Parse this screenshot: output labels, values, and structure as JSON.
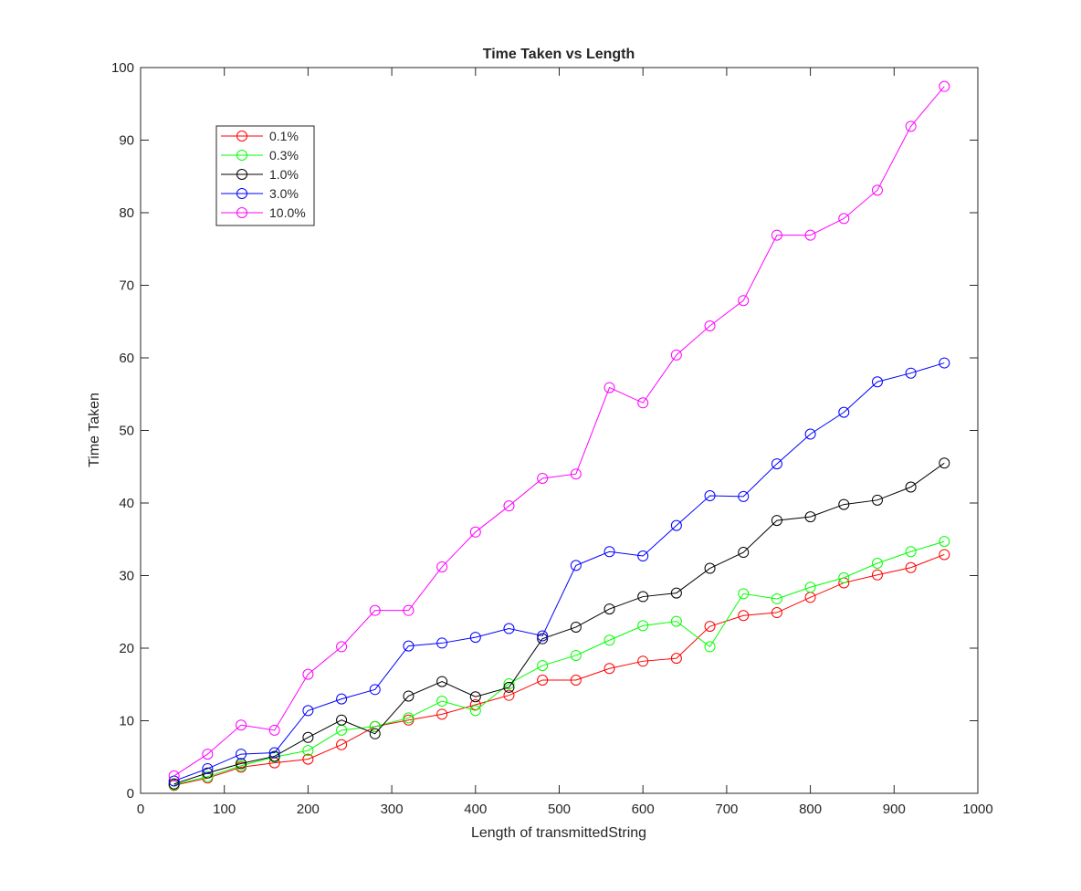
{
  "chart_data": {
    "type": "line",
    "title": "Time Taken vs Length",
    "xlabel": "Length of transmittedString",
    "ylabel": "Time Taken",
    "xlim": [
      0,
      1000
    ],
    "ylim": [
      0,
      100
    ],
    "xticks": [
      0,
      100,
      200,
      300,
      400,
      500,
      600,
      700,
      800,
      900,
      1000
    ],
    "yticks": [
      0,
      10,
      20,
      30,
      40,
      50,
      60,
      70,
      80,
      90,
      100
    ],
    "grid": false,
    "legend_position": "top-left",
    "marker": "circle",
    "x": [
      40,
      80,
      120,
      160,
      200,
      240,
      280,
      320,
      360,
      400,
      440,
      480,
      520,
      560,
      600,
      640,
      680,
      720,
      760,
      800,
      840,
      880,
      920,
      960
    ],
    "series": [
      {
        "name": "0.1%",
        "color": "#ff0000",
        "values": [
          1.1,
          2.1,
          3.6,
          4.2,
          4.7,
          6.7,
          9.2,
          10.1,
          10.9,
          12.2,
          13.5,
          15.6,
          15.6,
          17.2,
          18.2,
          18.6,
          23.0,
          24.5,
          24.9,
          27.0,
          29.0,
          30.1,
          31.1,
          32.9
        ]
      },
      {
        "name": "0.3%",
        "color": "#00ff00",
        "values": [
          1.2,
          2.3,
          3.8,
          5.0,
          5.9,
          8.7,
          9.2,
          10.4,
          12.7,
          11.4,
          15.1,
          17.6,
          19.0,
          21.1,
          23.1,
          23.7,
          20.2,
          27.5,
          26.8,
          28.4,
          29.7,
          31.7,
          33.3,
          34.7
        ]
      },
      {
        "name": "1.0%",
        "color": "#000000",
        "values": [
          1.3,
          2.8,
          4.1,
          5.1,
          7.7,
          10.1,
          8.2,
          13.4,
          15.4,
          13.3,
          14.6,
          21.3,
          22.9,
          25.4,
          27.1,
          27.6,
          31.0,
          33.2,
          37.6,
          38.1,
          39.8,
          40.4,
          42.2,
          45.5
        ]
      },
      {
        "name": "3.0%",
        "color": "#0000ff",
        "values": [
          1.7,
          3.4,
          5.4,
          5.6,
          11.4,
          13.0,
          14.3,
          20.3,
          20.7,
          21.5,
          22.7,
          21.7,
          31.4,
          33.3,
          32.7,
          36.9,
          41.0,
          40.9,
          45.4,
          49.5,
          52.5,
          56.7,
          57.9,
          59.3
        ]
      },
      {
        "name": "10.0%",
        "color": "#ff00ff",
        "values": [
          2.4,
          5.4,
          9.4,
          8.7,
          16.4,
          20.2,
          25.2,
          25.2,
          31.2,
          36.0,
          39.6,
          43.4,
          44.0,
          55.9,
          53.8,
          60.4,
          64.4,
          67.9,
          76.9,
          76.9,
          79.2,
          83.1,
          91.9,
          97.4
        ]
      }
    ]
  }
}
